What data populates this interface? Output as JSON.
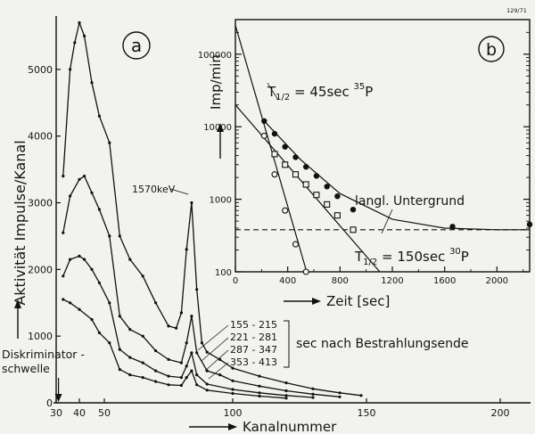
{
  "corner_tag": "129/71",
  "chart_data": [
    {
      "id": "a",
      "type": "line",
      "panel_label": "a",
      "xlabel": "Kanalnummer",
      "ylabel": "Aktivität    Impulse/Kanal",
      "xlim": [
        30,
        215
      ],
      "ylim": [
        0,
        5800
      ],
      "x_ticks": [
        30,
        40,
        50,
        100,
        150,
        200
      ],
      "y_ticks": [
        0,
        1000,
        2000,
        3000,
        4000,
        5000
      ],
      "peak_label": "1570keV",
      "threshold_label": [
        "Diskriminator -",
        "schwelle"
      ],
      "threshold_x": 31,
      "legend_title": "sec  nach  Bestrahlungsende",
      "series": [
        {
          "name": "155 - 215",
          "x": [
            33,
            36,
            38,
            40,
            42,
            45,
            48,
            52,
            56,
            60,
            65,
            70,
            75,
            78,
            80,
            82,
            84,
            86,
            88,
            90,
            95,
            100,
            110,
            120,
            130,
            140,
            148
          ],
          "y": [
            3400,
            5000,
            5400,
            5700,
            5500,
            4800,
            4300,
            3900,
            2500,
            2150,
            1900,
            1500,
            1150,
            1120,
            1350,
            2300,
            3000,
            1700,
            900,
            760,
            650,
            520,
            400,
            300,
            210,
            150,
            110
          ]
        },
        {
          "name": "221 - 281",
          "x": [
            33,
            36,
            40,
            42,
            45,
            48,
            52,
            56,
            60,
            65,
            70,
            75,
            80,
            82,
            84,
            86,
            90,
            95,
            100,
            110,
            120,
            130,
            140
          ],
          "y": [
            2550,
            3100,
            3350,
            3400,
            3150,
            2900,
            2500,
            1300,
            1100,
            1000,
            780,
            650,
            600,
            900,
            1300,
            750,
            480,
            420,
            330,
            250,
            180,
            130,
            90
          ]
        },
        {
          "name": "287 - 347",
          "x": [
            33,
            36,
            40,
            42,
            45,
            48,
            52,
            56,
            60,
            65,
            70,
            75,
            80,
            82,
            84,
            86,
            90,
            100,
            110,
            120,
            130
          ],
          "y": [
            1900,
            2150,
            2200,
            2150,
            2000,
            1800,
            1500,
            800,
            680,
            600,
            480,
            400,
            380,
            550,
            750,
            420,
            280,
            200,
            150,
            110,
            80
          ]
        },
        {
          "name": "353 - 413",
          "x": [
            33,
            36,
            40,
            45,
            48,
            52,
            56,
            60,
            65,
            70,
            75,
            80,
            82,
            84,
            86,
            90,
            100,
            110,
            120
          ],
          "y": [
            1550,
            1500,
            1400,
            1250,
            1050,
            900,
            500,
            420,
            380,
            320,
            270,
            260,
            380,
            480,
            270,
            190,
            140,
            100,
            70
          ]
        }
      ]
    },
    {
      "id": "b",
      "type": "scatter",
      "panel_label": "b",
      "xlabel": "Zeit [sec]",
      "ylabel": "Imp/min",
      "xlim": [
        0,
        2250
      ],
      "ylim": [
        100,
        300000
      ],
      "yscale": "log",
      "x_ticks": [
        0,
        400,
        800,
        1200,
        1600,
        2000
      ],
      "y_ticks": [
        100,
        1000,
        10000,
        100000
      ],
      "y_tick_labels": [
        "100",
        "1000",
        "10000",
        "100000"
      ],
      "annotations": {
        "p35": {
          "text": "T",
          "sub": "1/2",
          "rest": " = 45sec ",
          "sup": "35",
          "el": "P"
        },
        "p30": {
          "text": "T",
          "sub": "1/2",
          "rest": " = 150sec ",
          "sup": "30",
          "el": "P"
        },
        "background": "langl. Untergrund"
      },
      "total_points": {
        "x": [
          220,
          300,
          380,
          460,
          540,
          620,
          700,
          780,
          900,
          1660,
          2250
        ],
        "y": [
          12000,
          8000,
          5300,
          3800,
          2800,
          2100,
          1500,
          1100,
          720,
          420,
          450
        ]
      },
      "p35_points": {
        "x": [
          220,
          300,
          380,
          460,
          540
        ],
        "y": [
          7500,
          2200,
          700,
          240,
          100
        ]
      },
      "p30_points": {
        "x": [
          300,
          380,
          460,
          540,
          620,
          700,
          780,
          900
        ],
        "y": [
          4200,
          3000,
          2200,
          1600,
          1150,
          850,
          600,
          380
        ]
      },
      "lines": {
        "p35": {
          "x": [
            0,
            560
          ],
          "y": [
            250000,
            80
          ]
        },
        "p30": {
          "x": [
            0,
            1150
          ],
          "y": [
            20000,
            80
          ]
        },
        "total": {
          "x": [
            220,
            500,
            800,
            1200,
            1600,
            2000,
            2250
          ],
          "y": [
            12000,
            3500,
            1200,
            530,
            400,
            380,
            380
          ]
        },
        "background_level": 380
      }
    }
  ]
}
